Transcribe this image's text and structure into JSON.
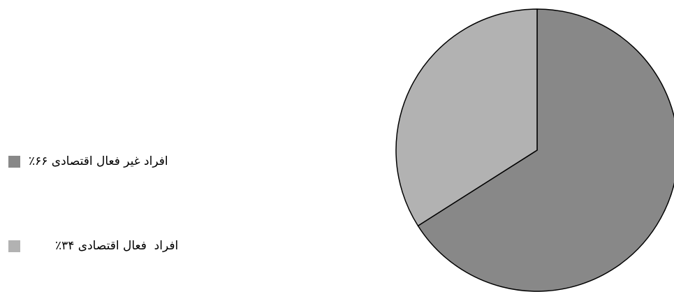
{
  "chart_data": {
    "type": "pie",
    "title": "",
    "slices": [
      {
        "label": "افراد غیر فعال اقتصادی ۶۶٪",
        "value": 66,
        "color": "#888888"
      },
      {
        "label": "افراد  فعال اقتصادی ۳۴٪",
        "value": 34,
        "color": "#b2b2b2"
      }
    ],
    "start_angle_deg": 0,
    "direction": "clockwise",
    "legend": "left",
    "slice_border_color": "#000000"
  }
}
